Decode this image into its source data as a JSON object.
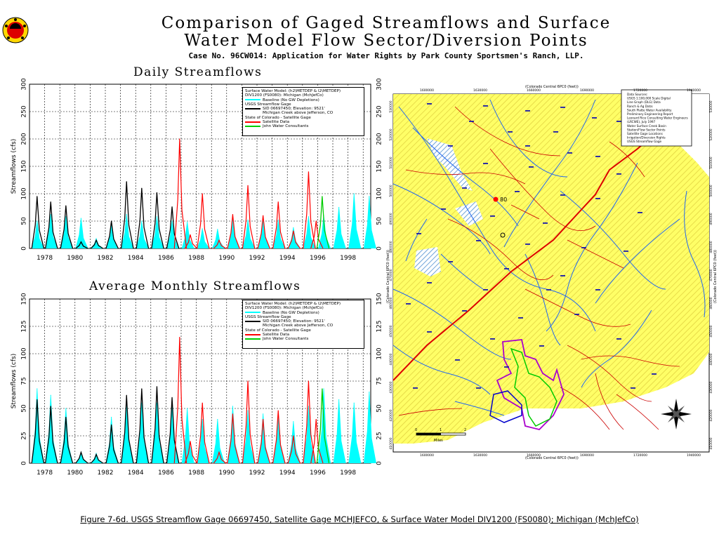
{
  "header": {
    "title_line1": "Comparison of Gaged Streamflows and Surface",
    "title_line2": "Water Model Flow Sector/Diversion Points",
    "subtitle": "Case No. 96CW014: Application for Water Rights by Park County Sportsmen's Ranch, LLP."
  },
  "caption": "Figure 7-6d. USGS Streamflow Gage 06697450, Satellite Gage MCHJEFCO, & Surface Water Model DIV1200 (FS0080); Michigan (MchJefCo)",
  "legend": {
    "line1": "Surface Water Model: (h2\\METDEP & l2\\METDEP)",
    "line2": "DIV1200 (FS0080): Michigan (MchJefCo)",
    "baseline": "Baseline (No GW Depletions)",
    "usgs_head": "USGS Streamflow Gage",
    "usgs_sid": "SID 06697450; Elevation: 9521'",
    "usgs_loc": "Michigan Creek above Jefferson, CO",
    "state": "State of Colorado - Satellite Gage",
    "sat_data": "Satellite Data",
    "john": "John Water Consultants"
  },
  "colors": {
    "baseline": "#00ffff",
    "usgs": "#000000",
    "satellite": "#ff0000",
    "john": "#00cc00",
    "map_yellow": "#ffff66",
    "map_river": "#2266ee",
    "map_road": "#cc0000"
  },
  "map": {
    "top_label": "(Colorado Central 6PC0 (feet))",
    "bottom_label": "(Colorado Central 6PC0 (feet))",
    "left_label": "(Colorado Central 6PC0 (feet))",
    "right_label": "(Colorado Central 6PC0 (feet))",
    "x_ticks": [
      "1600000",
      "1630000",
      "1660000",
      "1690000",
      "1720000",
      "1940000"
    ],
    "y_ticks": [
      "530000",
      "520000",
      "510000",
      "500000",
      "490000",
      "480000",
      "470000",
      "460000",
      "450000",
      "440000",
      "430000",
      "420000",
      "410000"
    ],
    "marker_label": "80",
    "scale_label": "Miles",
    "scale_ticks": [
      "0",
      "1",
      "2"
    ],
    "legend_lines": [
      "Data Sources:",
      "USGS 1:100,000 Scale Digital",
      "Line Graph (DLG) Data",
      "Ranch & Ag Data:",
      "South Platte Water Availability",
      "Preliminary Engineering Report",
      "Leonard Rice Consulting Water Engineers",
      "(LRCWE), July 1997",
      "Water Surface Creek Basin",
      "Station/Flow Sector Points",
      "Satellite Gage Locations",
      "Irrigation/Diversion Rights",
      "USGS Streamflow Gage"
    ]
  },
  "chart_data": [
    {
      "type": "area",
      "title": "Daily Streamflows",
      "ylabel": "Streamflows (cfs)",
      "xlabel": "",
      "xlim": [
        1977,
        1999.5
      ],
      "ylim": [
        0,
        300
      ],
      "yticks": [
        0,
        50,
        100,
        150,
        200,
        250,
        300
      ],
      "xticks": [
        "1978",
        "1980",
        "1982",
        "1984",
        "1986",
        "1988",
        "1990",
        "1992",
        "1994",
        "1996",
        "1998"
      ],
      "grid": true,
      "legend_position": "top-right",
      "series": [
        {
          "name": "Baseline (No GW Depletions)",
          "style": "filled-area",
          "peaks": [
            [
              1977.5,
              50
            ],
            [
              1978.4,
              62
            ],
            [
              1979.4,
              58
            ],
            [
              1980.4,
              55
            ],
            [
              1981.4,
              18
            ],
            [
              1982.4,
              45
            ],
            [
              1983.4,
              62
            ],
            [
              1984.4,
              50
            ],
            [
              1985.4,
              58
            ],
            [
              1986.4,
              50
            ],
            [
              1987.4,
              48
            ],
            [
              1988.4,
              36
            ],
            [
              1989.4,
              35
            ],
            [
              1990.4,
              60
            ],
            [
              1991.4,
              52
            ],
            [
              1992.4,
              50
            ],
            [
              1993.4,
              52
            ],
            [
              1994.4,
              38
            ],
            [
              1995.4,
              58
            ],
            [
              1996.4,
              60
            ],
            [
              1997.4,
              75
            ],
            [
              1998.4,
              100
            ],
            [
              1999.4,
              95
            ]
          ]
        },
        {
          "name": "SID 06697450; Elevation: 9521'",
          "style": "line",
          "peaks": [
            [
              1977.5,
              95
            ],
            [
              1978.4,
              85
            ],
            [
              1979.4,
              78
            ],
            [
              1980.4,
              12
            ],
            [
              1981.4,
              15
            ],
            [
              1982.4,
              50
            ],
            [
              1983.4,
              122
            ],
            [
              1984.4,
              110
            ],
            [
              1985.4,
              102
            ],
            [
              1986.4,
              76
            ]
          ]
        },
        {
          "name": "Satellite Data",
          "style": "line",
          "peaks": [
            [
              1986.9,
              200
            ],
            [
              1987.6,
              25
            ],
            [
              1988.4,
              100
            ],
            [
              1989.5,
              15
            ],
            [
              1990.4,
              62
            ],
            [
              1991.4,
              115
            ],
            [
              1992.4,
              60
            ],
            [
              1993.4,
              85
            ],
            [
              1994.4,
              32
            ],
            [
              1995.4,
              140
            ],
            [
              1995.9,
              50
            ]
          ]
        },
        {
          "name": "John Water Consultants",
          "style": "line",
          "peaks": [
            [
              1996.3,
              95
            ]
          ]
        }
      ]
    },
    {
      "type": "area",
      "title": "Average Monthly Streamflows",
      "ylabel": "Streamflows (cfs)",
      "xlabel": "",
      "xlim": [
        1977,
        1999.5
      ],
      "ylim": [
        0,
        150
      ],
      "yticks": [
        0,
        25,
        50,
        75,
        100,
        125,
        150
      ],
      "xticks": [
        "1978",
        "1980",
        "1982",
        "1984",
        "1986",
        "1988",
        "1990",
        "1992",
        "1994",
        "1996",
        "1998"
      ],
      "grid": true,
      "legend_position": "top-right",
      "series": [
        {
          "name": "Baseline (No GW Depletions)",
          "style": "filled-area",
          "peaks": [
            [
              1977.5,
              68
            ],
            [
              1978.4,
              62
            ],
            [
              1979.4,
              50
            ],
            [
              1980.4,
              10
            ],
            [
              1981.4,
              9
            ],
            [
              1982.4,
              42
            ],
            [
              1983.4,
              58
            ],
            [
              1984.4,
              55
            ],
            [
              1985.4,
              55
            ],
            [
              1986.4,
              52
            ],
            [
              1987.4,
              50
            ],
            [
              1988.4,
              40
            ],
            [
              1989.4,
              40
            ],
            [
              1990.4,
              52
            ],
            [
              1991.4,
              48
            ],
            [
              1992.4,
              45
            ],
            [
              1993.4,
              45
            ],
            [
              1994.4,
              38
            ],
            [
              1995.4,
              52
            ],
            [
              1996.4,
              68
            ],
            [
              1997.4,
              58
            ],
            [
              1998.4,
              55
            ],
            [
              1999.4,
              65
            ]
          ]
        },
        {
          "name": "SID 06697450; Elevation: 9521'",
          "style": "line",
          "peaks": [
            [
              1977.5,
              58
            ],
            [
              1978.4,
              52
            ],
            [
              1979.4,
              42
            ],
            [
              1980.4,
              10
            ],
            [
              1981.4,
              8
            ],
            [
              1982.4,
              35
            ],
            [
              1983.4,
              62
            ],
            [
              1984.4,
              68
            ],
            [
              1985.4,
              70
            ],
            [
              1986.4,
              60
            ]
          ]
        },
        {
          "name": "Satellite Data",
          "style": "line",
          "peaks": [
            [
              1986.9,
              115
            ],
            [
              1987.6,
              20
            ],
            [
              1988.4,
              55
            ],
            [
              1989.5,
              10
            ],
            [
              1990.4,
              45
            ],
            [
              1991.4,
              75
            ],
            [
              1992.4,
              40
            ],
            [
              1993.4,
              48
            ],
            [
              1994.4,
              25
            ],
            [
              1995.4,
              75
            ],
            [
              1995.9,
              40
            ]
          ]
        },
        {
          "name": "John Water Consultants",
          "style": "line",
          "peaks": [
            [
              1996.3,
              68
            ]
          ]
        }
      ]
    }
  ]
}
